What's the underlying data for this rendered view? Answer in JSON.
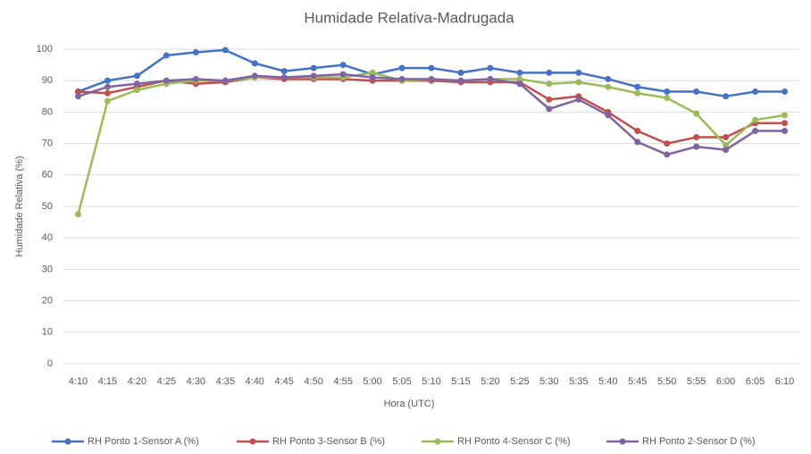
{
  "chart_data": {
    "type": "line",
    "title": "Humidade Relativa-Madrugada",
    "x_label": "Hora (UTC)",
    "y_label": "Humidade Relativa (%)",
    "categories": [
      "4:10",
      "4:15",
      "4:20",
      "4:25",
      "4:30",
      "4:35",
      "4:40",
      "4:45",
      "4:50",
      "4:55",
      "5:00",
      "5:05",
      "5:10",
      "5:15",
      "5:20",
      "5:25",
      "5:30",
      "5:35",
      "5:40",
      "5:45",
      "5:50",
      "5:55",
      "6:00",
      "6:05",
      "6:10"
    ],
    "series": [
      {
        "name": "RH Ponto 1-Sensor A (%)",
        "color": "#4472c4",
        "values": [
          86.5,
          90,
          91.5,
          98,
          99,
          99.7,
          95.5,
          93,
          94,
          95,
          92,
          94,
          94,
          92.5,
          94,
          92.5,
          92.5,
          92.5,
          90.5,
          88,
          86.5,
          86.5,
          85,
          86.5,
          86.5
        ]
      },
      {
        "name": "RH Ponto 3-Sensor B (%)",
        "color": "#c0504d",
        "values": [
          86.5,
          86,
          88,
          90,
          89,
          89.5,
          91,
          90.5,
          90.5,
          90.5,
          90,
          90,
          90,
          89.5,
          89.5,
          89.5,
          84,
          85,
          80,
          74,
          70,
          72,
          72,
          76.5,
          76.5
        ]
      },
      {
        "name": "RH Ponto 4-Sensor C (%)",
        "color": "#9bbb59",
        "values": [
          47.5,
          83.5,
          87,
          89,
          90,
          90,
          91,
          91,
          91,
          91,
          92.5,
          90,
          90.5,
          90,
          90.5,
          90.5,
          89,
          89.5,
          88,
          86,
          84.5,
          79.5,
          69.5,
          77.5,
          79
        ]
      },
      {
        "name": "RH Ponto 2-Sensor D (%)",
        "color": "#8064a2",
        "values": [
          85,
          88,
          89,
          90,
          90.5,
          90,
          91.5,
          91,
          91.5,
          92,
          91,
          90.5,
          90.5,
          90,
          90.5,
          89,
          81,
          84,
          79,
          70.5,
          66.5,
          69,
          68,
          74,
          74
        ]
      }
    ],
    "ylim": [
      0,
      100
    ],
    "yticks": [
      0,
      10,
      20,
      30,
      40,
      50,
      60,
      70,
      80,
      90,
      100
    ],
    "grid": true,
    "legend": "bottom"
  }
}
